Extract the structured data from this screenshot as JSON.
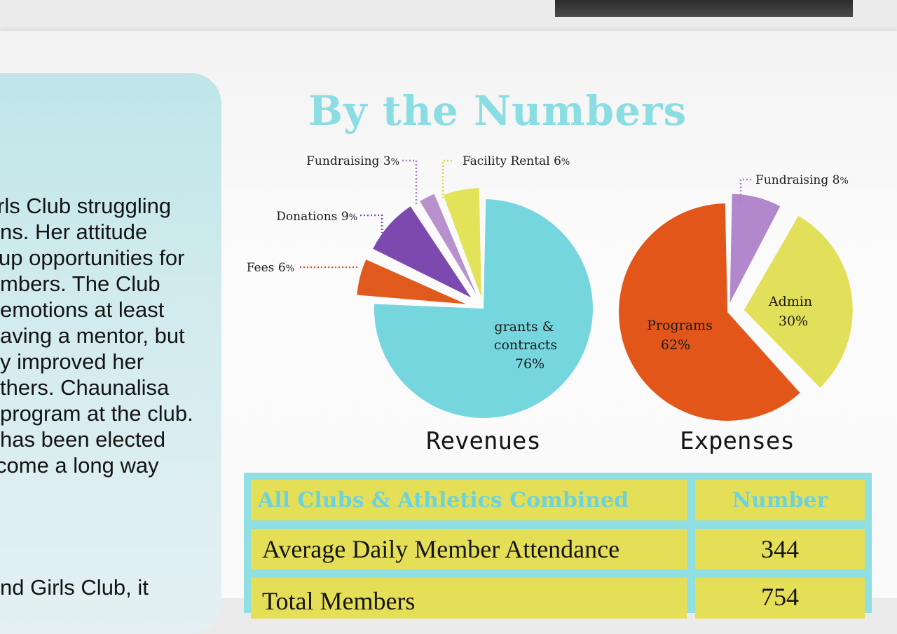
{
  "story": {
    "lines": [
      "rls Club struggling",
      "ns. Her attitude",
      "up opportunities for",
      "mbers. The Club",
      "emotions at least",
      "aving a mentor, but",
      "y improved her",
      "thers. Chaunalisa",
      "program at the club.",
      "has been elected",
      "come a long way"
    ],
    "tail": "nd Girls Club, it"
  },
  "section_title": "By the Numbers",
  "chart_data": [
    {
      "type": "pie",
      "title": "Revenues",
      "slices": [
        {
          "label": "grants & contracts",
          "value": 76,
          "pct_text": "76%",
          "color": "#76d6de",
          "placement": "inside"
        },
        {
          "label": "Fees",
          "value": 6,
          "pct_text": "6%",
          "color": "#e05a1e",
          "placement": "callout-left"
        },
        {
          "label": "Donations",
          "value": 9,
          "pct_text": "9%",
          "color": "#7c4aae",
          "placement": "callout-upper-left"
        },
        {
          "label": "Fundraising",
          "value": 3,
          "pct_text": "3%",
          "color": "#b890cc",
          "placement": "callout-top"
        },
        {
          "label": "Facility Rental",
          "value": 6,
          "pct_text": "6%",
          "color": "#e3e35a",
          "placement": "callout-top-right"
        }
      ]
    },
    {
      "type": "pie",
      "title": "Expenses",
      "slices": [
        {
          "label": "Programs",
          "value": 62,
          "pct_text": "62%",
          "color": "#e2561a",
          "placement": "inside"
        },
        {
          "label": "Fundraising",
          "value": 8,
          "pct_text": "8%",
          "color": "#b287cc",
          "placement": "callout-top-right"
        },
        {
          "label": "Admin",
          "value": 30,
          "pct_text": "30%",
          "color": "#e2e05a",
          "placement": "inside"
        }
      ]
    }
  ],
  "table": {
    "header": [
      "All Clubs & Athletics Combined",
      "Number"
    ],
    "rows": [
      [
        "Average Daily Member Attendance",
        "344"
      ],
      [
        "Total Members",
        "754"
      ]
    ],
    "colors": {
      "border": "#8fdfe3",
      "cell": "#e5df57",
      "header_text": "#6cd2dc"
    }
  }
}
